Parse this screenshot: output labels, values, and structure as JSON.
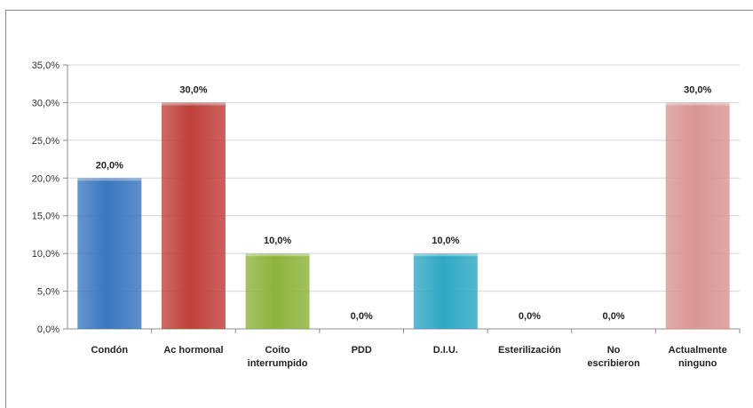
{
  "chart_data": {
    "type": "bar",
    "categories": [
      [
        "Condón"
      ],
      [
        "Ac hormonal"
      ],
      [
        "Coito",
        "interrumpido"
      ],
      [
        "PDD"
      ],
      [
        "D.I.U."
      ],
      [
        "Esterilización"
      ],
      [
        "No",
        "escribieron"
      ],
      [
        "Actualmente",
        "ninguno"
      ]
    ],
    "values": [
      20.0,
      30.0,
      10.0,
      0.0,
      10.0,
      0.0,
      0.0,
      30.0
    ],
    "value_labels": [
      "20,0%",
      "30,0%",
      "10,0%",
      "0,0%",
      "10,0%",
      "0,0%",
      "0,0%",
      "30,0%"
    ],
    "colors": [
      "#3a77bf",
      "#c0403a",
      "#8db33c",
      "#7a52a6",
      "#2fa8c4",
      "#e08a2e",
      "#7a8fbf",
      "#d99594"
    ],
    "ylim": [
      0,
      35
    ],
    "yticks": [
      0,
      5,
      10,
      15,
      20,
      25,
      30,
      35
    ],
    "ytick_labels": [
      "0,0%",
      "5,0%",
      "10,0%",
      "15,0%",
      "20,0%",
      "25,0%",
      "30,0%",
      "35,0%"
    ],
    "grid": true,
    "legend": "none",
    "title": "",
    "xlabel": "",
    "ylabel": ""
  }
}
